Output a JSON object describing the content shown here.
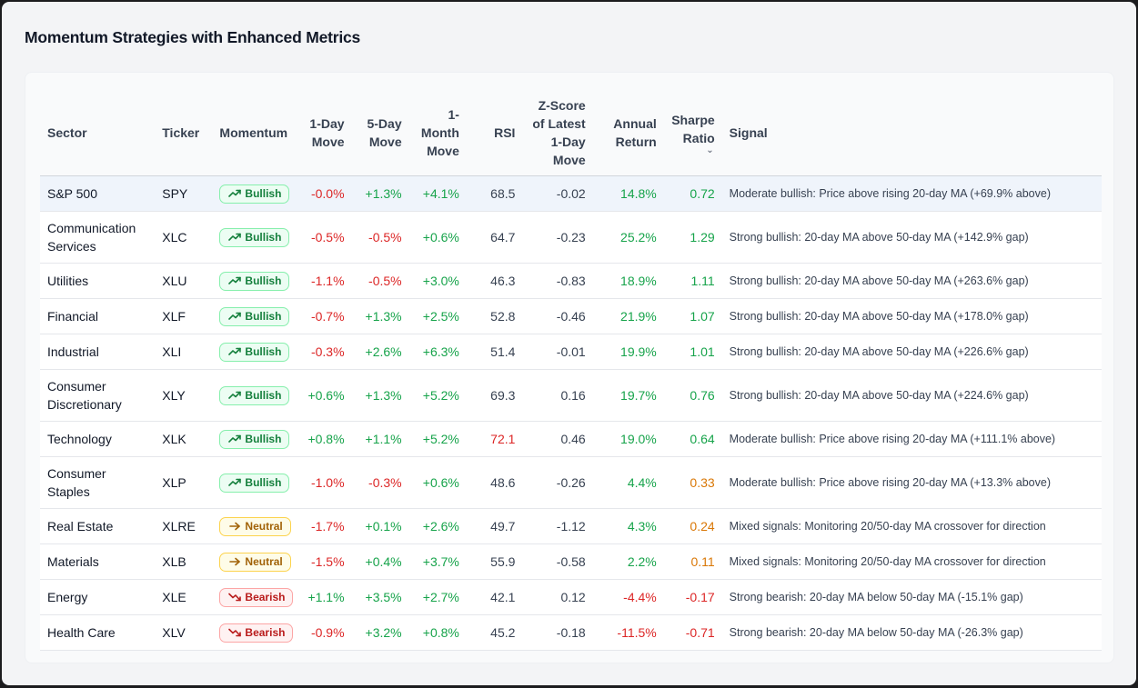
{
  "title": "Momentum Strategies with Enhanced Metrics",
  "columns": {
    "sector": "Sector",
    "ticker": "Ticker",
    "momentum": "Momentum",
    "one_day": [
      "1-Day",
      "Move"
    ],
    "five_day": [
      "5-Day",
      "Move"
    ],
    "one_month": [
      "1-",
      "Month",
      "Move"
    ],
    "rsi": "RSI",
    "zscore": [
      "Z-Score",
      "of Latest",
      "1-Day",
      "Move"
    ],
    "annual": [
      "Annual",
      "Return"
    ],
    "sharpe": [
      "Sharpe",
      "Ratio"
    ],
    "sharpe_sort_icon": "chevron-down-icon",
    "signal": "Signal"
  },
  "colors": {
    "positive": "#16a34a",
    "negative": "#dc2626",
    "warning": "#d97706",
    "bullish": "#15803d",
    "neutral": "#a16207",
    "bearish": "#b91c1c"
  },
  "rows": [
    {
      "sector": "S&P 500",
      "ticker": "SPY",
      "momentum": "Bullish",
      "d1": "-0.0%",
      "d5": "+1.3%",
      "m1": "+4.1%",
      "rsi": "68.5",
      "z": "-0.02",
      "ret": "14.8%",
      "sharpe": "0.72",
      "signal": "Moderate bullish: Price above rising 20-day MA (+69.9% above)"
    },
    {
      "sector": "Communication Services",
      "ticker": "XLC",
      "momentum": "Bullish",
      "d1": "-0.5%",
      "d5": "-0.5%",
      "m1": "+0.6%",
      "rsi": "64.7",
      "z": "-0.23",
      "ret": "25.2%",
      "sharpe": "1.29",
      "signal": "Strong bullish: 20-day MA above 50-day MA (+142.9% gap)"
    },
    {
      "sector": "Utilities",
      "ticker": "XLU",
      "momentum": "Bullish",
      "d1": "-1.1%",
      "d5": "-0.5%",
      "m1": "+3.0%",
      "rsi": "46.3",
      "z": "-0.83",
      "ret": "18.9%",
      "sharpe": "1.11",
      "signal": "Strong bullish: 20-day MA above 50-day MA (+263.6% gap)"
    },
    {
      "sector": "Financial",
      "ticker": "XLF",
      "momentum": "Bullish",
      "d1": "-0.7%",
      "d5": "+1.3%",
      "m1": "+2.5%",
      "rsi": "52.8",
      "z": "-0.46",
      "ret": "21.9%",
      "sharpe": "1.07",
      "signal": "Strong bullish: 20-day MA above 50-day MA (+178.0% gap)"
    },
    {
      "sector": "Industrial",
      "ticker": "XLI",
      "momentum": "Bullish",
      "d1": "-0.3%",
      "d5": "+2.6%",
      "m1": "+6.3%",
      "rsi": "51.4",
      "z": "-0.01",
      "ret": "19.9%",
      "sharpe": "1.01",
      "signal": "Strong bullish: 20-day MA above 50-day MA (+226.6% gap)"
    },
    {
      "sector": "Consumer Discretionary",
      "ticker": "XLY",
      "momentum": "Bullish",
      "d1": "+0.6%",
      "d5": "+1.3%",
      "m1": "+5.2%",
      "rsi": "69.3",
      "z": "0.16",
      "ret": "19.7%",
      "sharpe": "0.76",
      "signal": "Strong bullish: 20-day MA above 50-day MA (+224.6% gap)"
    },
    {
      "sector": "Technology",
      "ticker": "XLK",
      "momentum": "Bullish",
      "d1": "+0.8%",
      "d5": "+1.1%",
      "m1": "+5.2%",
      "rsi": "72.1",
      "z": "0.46",
      "ret": "19.0%",
      "sharpe": "0.64",
      "signal": "Moderate bullish: Price above rising 20-day MA (+111.1% above)"
    },
    {
      "sector": "Consumer Staples",
      "ticker": "XLP",
      "momentum": "Bullish",
      "d1": "-1.0%",
      "d5": "-0.3%",
      "m1": "+0.6%",
      "rsi": "48.6",
      "z": "-0.26",
      "ret": "4.4%",
      "sharpe": "0.33",
      "signal": "Moderate bullish: Price above rising 20-day MA (+13.3% above)"
    },
    {
      "sector": "Real Estate",
      "ticker": "XLRE",
      "momentum": "Neutral",
      "d1": "-1.7%",
      "d5": "+0.1%",
      "m1": "+2.6%",
      "rsi": "49.7",
      "z": "-1.12",
      "ret": "4.3%",
      "sharpe": "0.24",
      "signal": "Mixed signals: Monitoring 20/50-day MA crossover for direction"
    },
    {
      "sector": "Materials",
      "ticker": "XLB",
      "momentum": "Neutral",
      "d1": "-1.5%",
      "d5": "+0.4%",
      "m1": "+3.7%",
      "rsi": "55.9",
      "z": "-0.58",
      "ret": "2.2%",
      "sharpe": "0.11",
      "signal": "Mixed signals: Monitoring 20/50-day MA crossover for direction"
    },
    {
      "sector": "Energy",
      "ticker": "XLE",
      "momentum": "Bearish",
      "d1": "+1.1%",
      "d5": "+3.5%",
      "m1": "+2.7%",
      "rsi": "42.1",
      "z": "0.12",
      "ret": "-4.4%",
      "sharpe": "-0.17",
      "signal": "Strong bearish: 20-day MA below 50-day MA (-15.1% gap)"
    },
    {
      "sector": "Health Care",
      "ticker": "XLV",
      "momentum": "Bearish",
      "d1": "-0.9%",
      "d5": "+3.2%",
      "m1": "+0.8%",
      "rsi": "45.2",
      "z": "-0.18",
      "ret": "-11.5%",
      "sharpe": "-0.71",
      "signal": "Strong bearish: 20-day MA below 50-day MA (-26.3% gap)"
    }
  ]
}
